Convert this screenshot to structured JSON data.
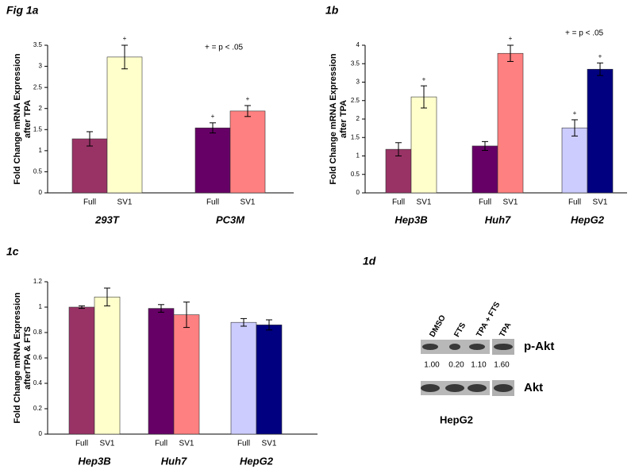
{
  "chart_data": [
    {
      "type": "bar",
      "title": "Fig 1a",
      "ylabel": [
        "Fold Change mRNA Expression",
        "after TPA"
      ],
      "annotation": "+ = p < .05",
      "ylim": [
        0,
        3.5
      ],
      "yticks": [
        0,
        0.5,
        1,
        1.5,
        2,
        2.5,
        3,
        3.5
      ],
      "groups": [
        {
          "name": "293T",
          "bars": [
            {
              "label": "Full",
              "value": 1.28,
              "error": 0.17,
              "color": "#993366"
            },
            {
              "label": "SV1",
              "value": 3.22,
              "error": 0.28,
              "color": "#ffffcc",
              "sig": "+"
            }
          ]
        },
        {
          "name": "PC3M",
          "bars": [
            {
              "label": "Full",
              "value": 1.54,
              "error": 0.12,
              "color": "#660066",
              "sig": "+"
            },
            {
              "label": "SV1",
              "value": 1.94,
              "error": 0.13,
              "color": "#ff8080",
              "sig": "+"
            }
          ]
        }
      ]
    },
    {
      "type": "bar",
      "title": "1b",
      "ylabel": [
        "Fold Change mRNA Expression",
        "after TPA"
      ],
      "annotation": "+ = p < .05",
      "ylim": [
        0,
        4
      ],
      "yticks": [
        0,
        0.5,
        1,
        1.5,
        2,
        2.5,
        3,
        3.5,
        4
      ],
      "groups": [
        {
          "name": "Hep3B",
          "bars": [
            {
              "label": "Full",
              "value": 1.18,
              "error": 0.18,
              "color": "#993366"
            },
            {
              "label": "SV1",
              "value": 2.6,
              "error": 0.3,
              "color": "#ffffcc",
              "sig": "+"
            }
          ]
        },
        {
          "name": "Huh7",
          "bars": [
            {
              "label": "Full",
              "value": 1.27,
              "error": 0.12,
              "color": "#660066"
            },
            {
              "label": "SV1",
              "value": 3.78,
              "error": 0.22,
              "color": "#ff8080",
              "sig": "+"
            }
          ]
        },
        {
          "name": "HepG2",
          "bars": [
            {
              "label": "Full",
              "value": 1.76,
              "error": 0.22,
              "color": "#ccccff",
              "sig": "+"
            },
            {
              "label": "SV1",
              "value": 3.35,
              "error": 0.17,
              "color": "#000080",
              "sig": "+"
            }
          ]
        }
      ]
    },
    {
      "type": "bar",
      "title": "1c",
      "ylabel": [
        "Fold Change mRNA Expression",
        "afterTPA & FTS"
      ],
      "ylim": [
        0,
        1.2
      ],
      "yticks": [
        0,
        0.2,
        0.4,
        0.6,
        0.8,
        1,
        1.2
      ],
      "groups": [
        {
          "name": "Hep3B",
          "bars": [
            {
              "label": "Full",
              "value": 1.0,
              "error": 0.01,
              "color": "#993366"
            },
            {
              "label": "SV1",
              "value": 1.08,
              "error": 0.07,
              "color": "#ffffcc"
            }
          ]
        },
        {
          "name": "Huh7",
          "bars": [
            {
              "label": "Full",
              "value": 0.99,
              "error": 0.03,
              "color": "#660066"
            },
            {
              "label": "SV1",
              "value": 0.94,
              "error": 0.1,
              "color": "#ff8080"
            }
          ]
        },
        {
          "name": "HepG2",
          "bars": [
            {
              "label": "Full",
              "value": 0.88,
              "error": 0.03,
              "color": "#ccccff"
            },
            {
              "label": "SV1",
              "value": 0.86,
              "error": 0.04,
              "color": "#000080"
            }
          ]
        }
      ]
    }
  ],
  "blot": {
    "title": "1d",
    "lanes": [
      "DMSO",
      "FTS",
      "TPA + FTS",
      "TPA"
    ],
    "rows": [
      "p-Akt",
      "Akt"
    ],
    "values": [
      1.0,
      0.2,
      1.1,
      1.6
    ],
    "value_labels": [
      "1.00",
      "0.20",
      "1.10",
      "1.60"
    ],
    "cell_line": "HepG2"
  }
}
